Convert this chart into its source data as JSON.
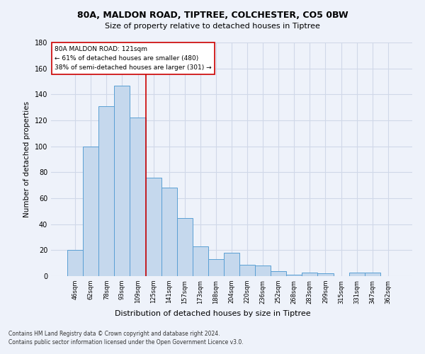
{
  "title1": "80A, MALDON ROAD, TIPTREE, COLCHESTER, CO5 0BW",
  "title2": "Size of property relative to detached houses in Tiptree",
  "xlabel": "Distribution of detached houses by size in Tiptree",
  "ylabel": "Number of detached properties",
  "categories": [
    "46sqm",
    "62sqm",
    "78sqm",
    "93sqm",
    "109sqm",
    "125sqm",
    "141sqm",
    "157sqm",
    "173sqm",
    "188sqm",
    "204sqm",
    "220sqm",
    "236sqm",
    "252sqm",
    "268sqm",
    "283sqm",
    "299sqm",
    "315sqm",
    "331sqm",
    "347sqm",
    "362sqm"
  ],
  "values": [
    20,
    100,
    131,
    147,
    122,
    76,
    68,
    45,
    23,
    13,
    18,
    9,
    8,
    4,
    1,
    3,
    2,
    0,
    3,
    3,
    0
  ],
  "bar_color": "#c5d8ed",
  "bar_edge_color": "#5a9fd4",
  "property_line_x": 4.5,
  "annotation_line1": "80A MALDON ROAD: 121sqm",
  "annotation_line2": "← 61% of detached houses are smaller (480)",
  "annotation_line3": "38% of semi-detached houses are larger (301) →",
  "vline_color": "#cc0000",
  "annotation_box_color": "#ffffff",
  "annotation_box_edge": "#cc0000",
  "grid_color": "#d0d8e8",
  "background_color": "#eef2fa",
  "footer1": "Contains HM Land Registry data © Crown copyright and database right 2024.",
  "footer2": "Contains public sector information licensed under the Open Government Licence v3.0.",
  "ylim": [
    0,
    180
  ],
  "yticks": [
    0,
    20,
    40,
    60,
    80,
    100,
    120,
    140,
    160,
    180
  ]
}
